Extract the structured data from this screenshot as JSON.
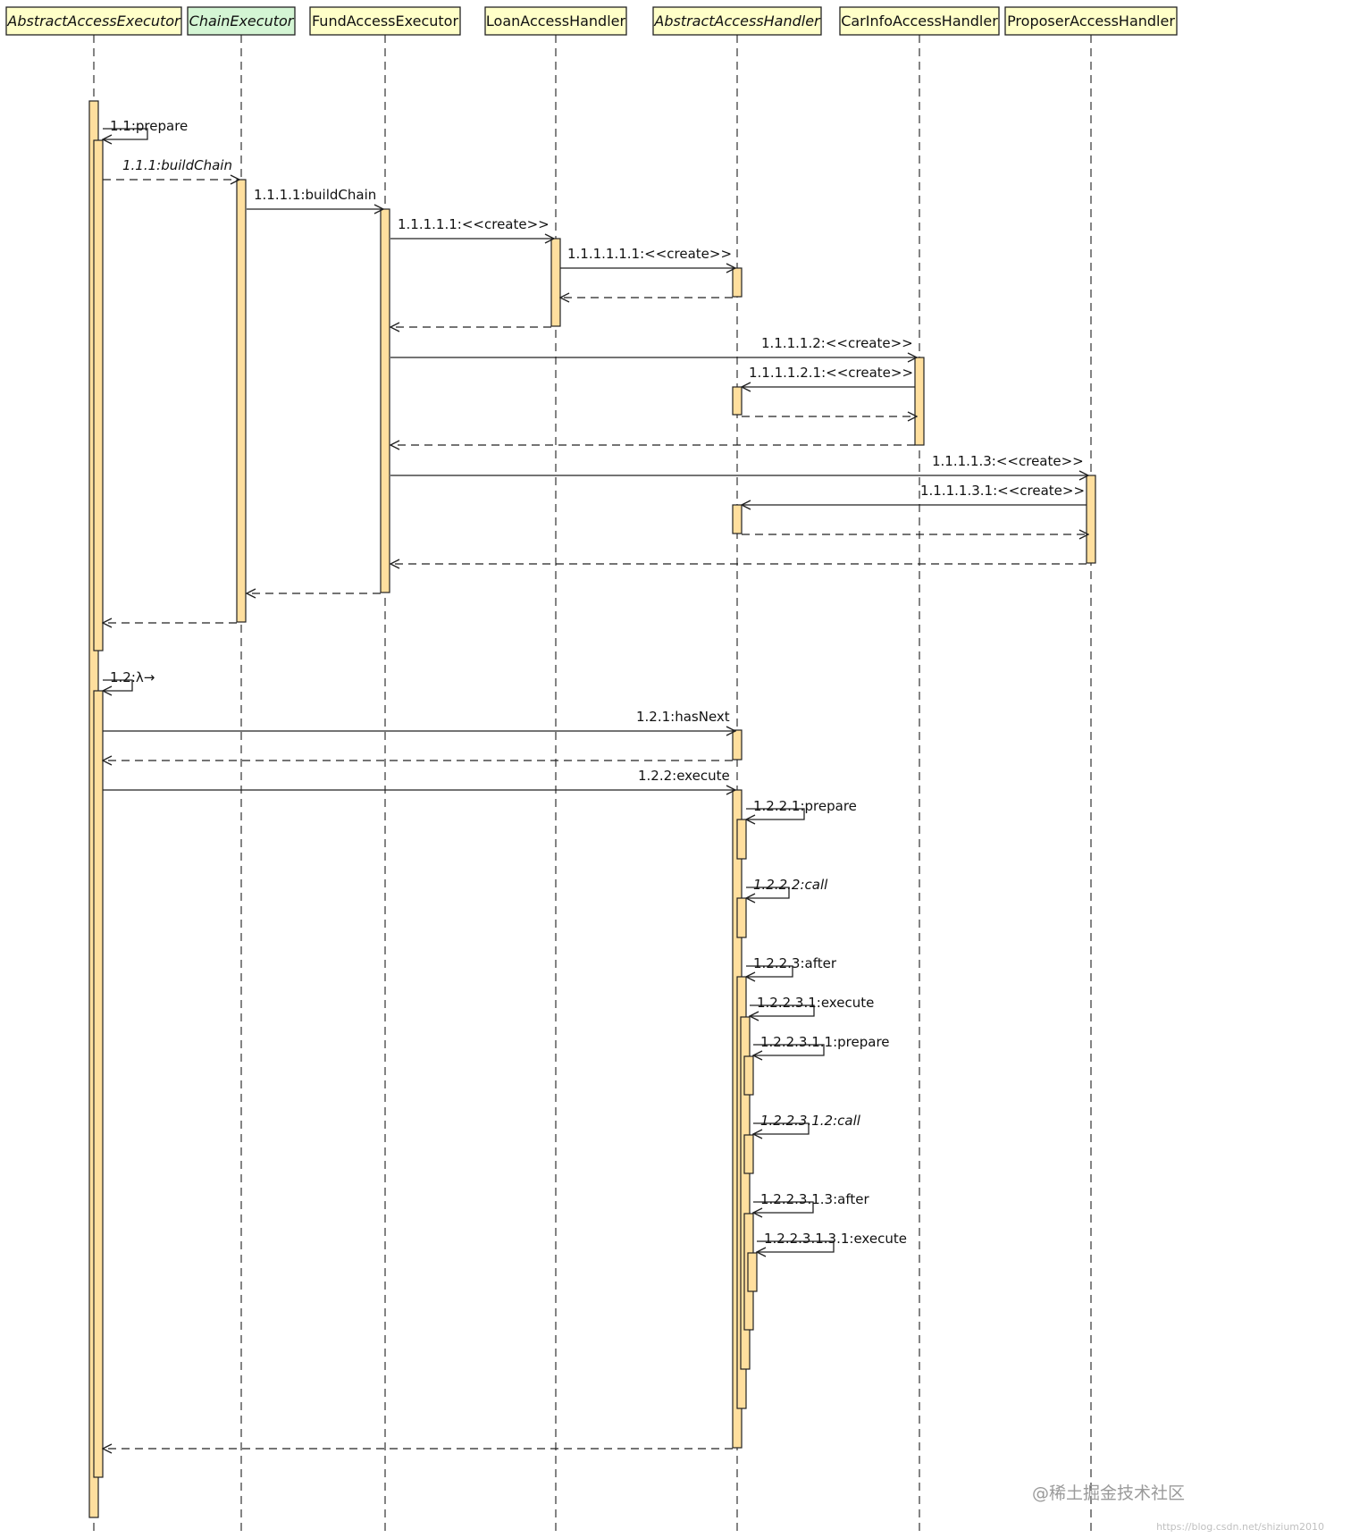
{
  "colors": {
    "header_fill": "#ffffc8",
    "header_fill_accent": "#d4f5d4",
    "activation_fill": "#ffdf9e",
    "line": "#222222"
  },
  "participants": [
    {
      "id": "P1",
      "name": "AbstractAccessExecutor",
      "italic": true,
      "accent": false
    },
    {
      "id": "P2",
      "name": "ChainExecutor",
      "italic": true,
      "accent": true
    },
    {
      "id": "P3",
      "name": "FundAccessExecutor",
      "italic": false,
      "accent": false
    },
    {
      "id": "P4",
      "name": "LoanAccessHandler",
      "italic": false,
      "accent": false
    },
    {
      "id": "P5",
      "name": "AbstractAccessHandler",
      "italic": true,
      "accent": false
    },
    {
      "id": "P6",
      "name": "CarInfoAccessHandler",
      "italic": false,
      "accent": false
    },
    {
      "id": "P7",
      "name": "ProposerAccessHandler",
      "italic": false,
      "accent": false
    }
  ],
  "messages": [
    {
      "id": "m1",
      "label": "1.1:prepare",
      "from": "P1",
      "to": "P1",
      "kind": "self",
      "italic": false
    },
    {
      "id": "m2",
      "label": "1.1.1:buildChain",
      "from": "P1",
      "to": "P2",
      "kind": "call",
      "italic": true
    },
    {
      "id": "m3",
      "label": "1.1.1.1:buildChain",
      "from": "P2",
      "to": "P3",
      "kind": "call",
      "italic": false
    },
    {
      "id": "m4",
      "label": "1.1.1.1.1:<<create>>",
      "from": "P3",
      "to": "P4",
      "kind": "call",
      "italic": false
    },
    {
      "id": "m5",
      "label": "1.1.1.1.1.1:<<create>>",
      "from": "P4",
      "to": "P5",
      "kind": "call",
      "italic": false
    },
    {
      "id": "r5",
      "label": "",
      "from": "P5",
      "to": "P4",
      "kind": "return"
    },
    {
      "id": "r4",
      "label": "",
      "from": "P4",
      "to": "P3",
      "kind": "return"
    },
    {
      "id": "m6",
      "label": "1.1.1.1.2:<<create>>",
      "from": "P3",
      "to": "P6",
      "kind": "call",
      "italic": false
    },
    {
      "id": "m7",
      "label": "1.1.1.1.2.1:<<create>>",
      "from": "P6",
      "to": "P5",
      "kind": "call",
      "italic": false
    },
    {
      "id": "r7",
      "label": "",
      "from": "P5",
      "to": "P6",
      "kind": "return"
    },
    {
      "id": "r6",
      "label": "",
      "from": "P6",
      "to": "P3",
      "kind": "return"
    },
    {
      "id": "m8",
      "label": "1.1.1.1.3:<<create>>",
      "from": "P3",
      "to": "P7",
      "kind": "call",
      "italic": false
    },
    {
      "id": "m9",
      "label": "1.1.1.1.3.1:<<create>>",
      "from": "P7",
      "to": "P5",
      "kind": "call",
      "italic": false
    },
    {
      "id": "r9",
      "label": "",
      "from": "P5",
      "to": "P7",
      "kind": "return"
    },
    {
      "id": "r8",
      "label": "",
      "from": "P7",
      "to": "P3",
      "kind": "return"
    },
    {
      "id": "r3",
      "label": "",
      "from": "P3",
      "to": "P2",
      "kind": "return"
    },
    {
      "id": "r2",
      "label": "",
      "from": "P2",
      "to": "P1",
      "kind": "return"
    },
    {
      "id": "m10",
      "label": "1.2:λ→",
      "from": "P1",
      "to": "P1",
      "kind": "self",
      "italic": false
    },
    {
      "id": "m11",
      "label": "1.2.1:hasNext",
      "from": "P1",
      "to": "P5",
      "kind": "call",
      "italic": false
    },
    {
      "id": "r11",
      "label": "",
      "from": "P5",
      "to": "P1",
      "kind": "return"
    },
    {
      "id": "m12",
      "label": "1.2.2:execute",
      "from": "P1",
      "to": "P5",
      "kind": "call",
      "italic": false
    },
    {
      "id": "m13",
      "label": "1.2.2.1:prepare",
      "from": "P5",
      "to": "P5",
      "kind": "self",
      "italic": false
    },
    {
      "id": "m14",
      "label": "1.2.2.2:call",
      "from": "P5",
      "to": "P5",
      "kind": "self",
      "italic": true
    },
    {
      "id": "m15",
      "label": "1.2.2.3:after",
      "from": "P5",
      "to": "P5",
      "kind": "self",
      "italic": false
    },
    {
      "id": "m16",
      "label": "1.2.2.3.1:execute",
      "from": "P5",
      "to": "P5",
      "kind": "self",
      "italic": false
    },
    {
      "id": "m17",
      "label": "1.2.2.3.1.1:prepare",
      "from": "P5",
      "to": "P5",
      "kind": "self",
      "italic": false
    },
    {
      "id": "m18",
      "label": "1.2.2.3.1.2:call",
      "from": "P5",
      "to": "P5",
      "kind": "self",
      "italic": true
    },
    {
      "id": "m19",
      "label": "1.2.2.3.1.3:after",
      "from": "P5",
      "to": "P5",
      "kind": "self",
      "italic": false
    },
    {
      "id": "m20",
      "label": "1.2.2.3.1.3.1:execute",
      "from": "P5",
      "to": "P5",
      "kind": "self",
      "italic": false
    },
    {
      "id": "r12",
      "label": "",
      "from": "P5",
      "to": "P1",
      "kind": "return"
    }
  ],
  "watermark": "@稀土掘金技术社区",
  "source_mark": "https://blog.csdn.net/shizium2010"
}
